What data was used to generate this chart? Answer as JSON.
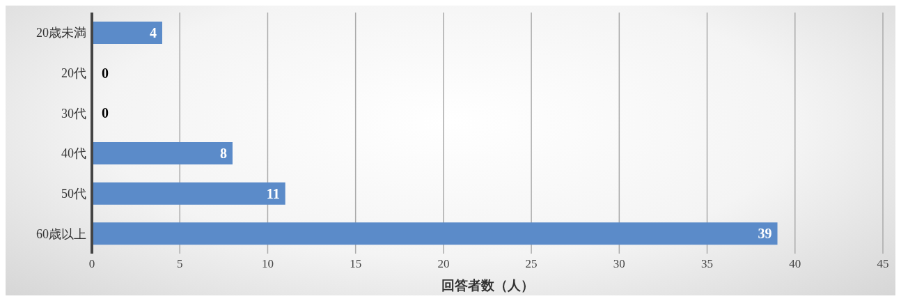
{
  "chart_data": {
    "type": "bar",
    "orientation": "horizontal",
    "categories": [
      "20歳未満",
      "20代",
      "30代",
      "40代",
      "50代",
      "60歳以上"
    ],
    "values": [
      4,
      0,
      0,
      8,
      11,
      39
    ],
    "color": "#5b8bc9",
    "xlabel": "回答者数（人）",
    "xlim": [
      0,
      45
    ],
    "xticks": [
      0,
      5,
      10,
      15,
      20,
      25,
      30,
      35,
      40,
      45
    ],
    "grid": "x",
    "data_labels": true,
    "legend": false
  }
}
